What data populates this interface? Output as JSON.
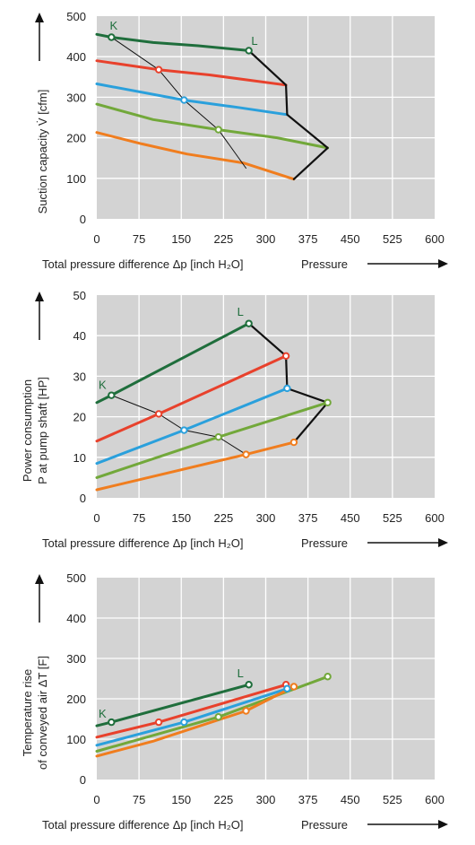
{
  "colors": {
    "plot_bg": "#d3d3d3",
    "grid": "#ffffff",
    "dark_green": "#1f6e3c",
    "red": "#e8412c",
    "blue": "#2aa0dc",
    "light_green": "#72a83a",
    "orange": "#f07d1e",
    "black": "#111111"
  },
  "chart_data": [
    {
      "type": "line",
      "ylabel_lines": [
        "Suction capacity V̇    [cfm]"
      ],
      "xlabel": "Total pressure difference Δp [inch H₂O]",
      "xlabel_right": "Pressure",
      "x_ticks": [
        "0",
        "75",
        "150",
        "225",
        "300",
        "375",
        "450",
        "525",
        "600"
      ],
      "y_ticks": [
        "0",
        "100",
        "200",
        "300",
        "400",
        "500"
      ],
      "xlim": [
        0,
        600
      ],
      "ylim": [
        0,
        500
      ],
      "grid": true,
      "curve_labels": [
        {
          "text": "K",
          "x": 30,
          "y": 478,
          "color": "dark_green"
        },
        {
          "text": "L",
          "x": 280,
          "y": 440,
          "color": "dark_green"
        }
      ],
      "series": [
        {
          "color": "dark_green",
          "x": [
            0,
            26,
            100,
            180,
            270
          ],
          "y": [
            455,
            448,
            435,
            427,
            415
          ],
          "markers_x": [
            26,
            270
          ],
          "markers_y": [
            448,
            415
          ]
        },
        {
          "color": "red",
          "x": [
            0,
            110,
            200,
            336
          ],
          "y": [
            390,
            368,
            355,
            330
          ],
          "markers_x": [
            110
          ],
          "markers_y": [
            368
          ]
        },
        {
          "color": "blue",
          "x": [
            0,
            155,
            250,
            338
          ],
          "y": [
            333,
            293,
            275,
            257
          ],
          "markers_x": [
            155
          ],
          "markers_y": [
            293
          ]
        },
        {
          "color": "light_green",
          "x": [
            0,
            100,
            216,
            320,
            410
          ],
          "y": [
            283,
            245,
            220,
            200,
            175
          ],
          "markers_x": [
            216
          ],
          "markers_y": [
            220
          ]
        },
        {
          "color": "orange",
          "x": [
            0,
            80,
            160,
            260,
            350
          ],
          "y": [
            213,
            185,
            160,
            138,
            98
          ]
        },
        {
          "color": "black",
          "width": 2.2,
          "x": [
            270,
            336,
            338,
            410,
            350
          ],
          "y": [
            415,
            330,
            257,
            175,
            98
          ]
        },
        {
          "color": "black",
          "width": 1,
          "x": [
            26,
            110,
            155,
            216,
            265
          ],
          "y": [
            448,
            368,
            293,
            220,
            125
          ]
        }
      ]
    },
    {
      "type": "line",
      "ylabel_lines": [
        "Power consumption",
        "P at pump shaft          [HP]"
      ],
      "xlabel": "Total pressure difference Δp [inch H₂O]",
      "xlabel_right": "Pressure",
      "x_ticks": [
        "0",
        "75",
        "150",
        "225",
        "300",
        "375",
        "450",
        "525",
        "600"
      ],
      "y_ticks": [
        "0",
        "10",
        "20",
        "30",
        "40",
        "50"
      ],
      "xlim": [
        0,
        600
      ],
      "ylim": [
        0,
        50
      ],
      "grid": true,
      "curve_labels": [
        {
          "text": "K",
          "x": 10,
          "y": 28,
          "color": "dark_green"
        },
        {
          "text": "L",
          "x": 255,
          "y": 46,
          "color": "dark_green"
        }
      ],
      "series": [
        {
          "color": "dark_green",
          "x": [
            0,
            26,
            270
          ],
          "y": [
            23.5,
            25.3,
            43
          ],
          "markers_x": [
            26,
            270
          ],
          "markers_y": [
            25.3,
            43
          ]
        },
        {
          "color": "red",
          "x": [
            0,
            110,
            336
          ],
          "y": [
            14,
            20.7,
            35
          ],
          "markers_x": [
            110,
            336
          ],
          "markers_y": [
            20.7,
            35
          ]
        },
        {
          "color": "blue",
          "x": [
            0,
            155,
            338
          ],
          "y": [
            8.5,
            16.7,
            27
          ],
          "markers_x": [
            155,
            338
          ],
          "markers_y": [
            16.7,
            27
          ]
        },
        {
          "color": "light_green",
          "x": [
            0,
            216,
            410
          ],
          "y": [
            5,
            15,
            23.5
          ],
          "markers_x": [
            216,
            410
          ],
          "markers_y": [
            15,
            23.5
          ]
        },
        {
          "color": "orange",
          "x": [
            0,
            265,
            350
          ],
          "y": [
            2,
            10.7,
            13.7
          ],
          "markers_x": [
            265,
            350
          ],
          "markers_y": [
            10.7,
            13.7
          ]
        },
        {
          "color": "black",
          "width": 2.2,
          "x": [
            270,
            336,
            338,
            410,
            350
          ],
          "y": [
            43,
            35,
            27,
            23.5,
            13.7
          ]
        },
        {
          "color": "black",
          "width": 1,
          "x": [
            26,
            110,
            155,
            216,
            265
          ],
          "y": [
            25.3,
            20.7,
            16.7,
            15,
            10.7
          ]
        }
      ]
    },
    {
      "type": "line",
      "ylabel_lines": [
        "Temperature rise",
        "of conveyed air       ΔT [F]"
      ],
      "xlabel": "Total pressure difference Δp [inch H₂O]",
      "xlabel_right": "Pressure",
      "x_ticks": [
        "0",
        "75",
        "150",
        "225",
        "300",
        "375",
        "450",
        "525",
        "600"
      ],
      "y_ticks": [
        "0",
        "100",
        "200",
        "300",
        "400",
        "500"
      ],
      "xlim": [
        0,
        600
      ],
      "ylim": [
        0,
        500
      ],
      "grid": true,
      "curve_labels": [
        {
          "text": "K",
          "x": 10,
          "y": 165,
          "color": "dark_green"
        },
        {
          "text": "L",
          "x": 255,
          "y": 265,
          "color": "dark_green"
        }
      ],
      "series": [
        {
          "color": "dark_green",
          "x": [
            0,
            26,
            270
          ],
          "y": [
            133,
            142,
            235
          ],
          "markers_x": [
            26,
            270
          ],
          "markers_y": [
            142,
            235
          ]
        },
        {
          "color": "red",
          "x": [
            0,
            110,
            336
          ],
          "y": [
            105,
            142,
            235
          ],
          "markers_x": [
            110,
            336
          ],
          "markers_y": [
            142,
            235
          ]
        },
        {
          "color": "blue",
          "x": [
            0,
            155,
            338
          ],
          "y": [
            85,
            142,
            225
          ],
          "markers_x": [
            155,
            338
          ],
          "markers_y": [
            142,
            225
          ]
        },
        {
          "color": "light_green",
          "x": [
            0,
            216,
            410
          ],
          "y": [
            70,
            155,
            255
          ],
          "markers_x": [
            216,
            410
          ],
          "markers_y": [
            155,
            255
          ]
        },
        {
          "color": "orange",
          "x": [
            0,
            100,
            265,
            350
          ],
          "y": [
            58,
            95,
            170,
            230
          ],
          "markers_x": [
            265,
            350
          ],
          "markers_y": [
            170,
            230
          ]
        }
      ]
    }
  ]
}
